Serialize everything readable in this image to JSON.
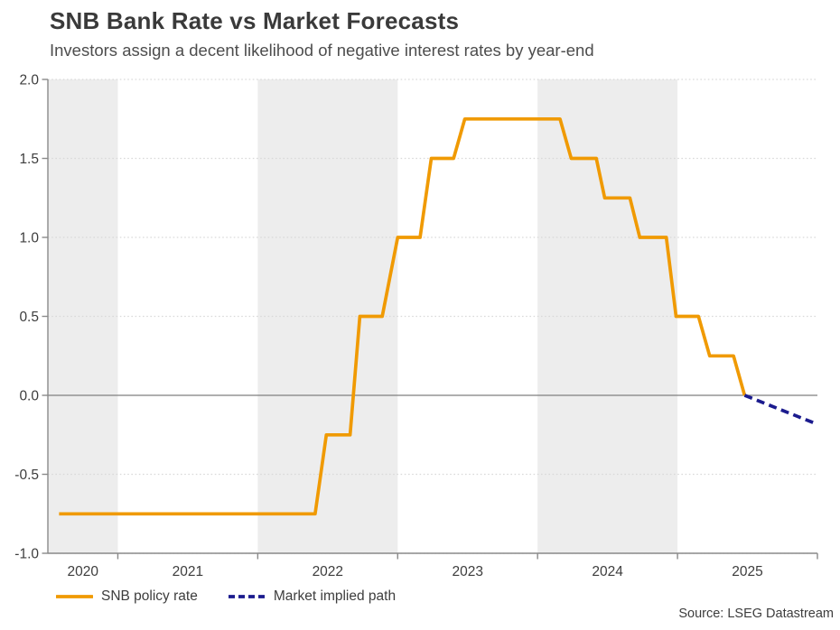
{
  "header": {
    "title": "SNB Bank Rate vs Market Forecasts",
    "subtitle": "Investors assign a decent likelihood of negative interest rates by year-end"
  },
  "source": "Source: LSEG Datastream",
  "legend": {
    "items": [
      {
        "label": "SNB policy rate",
        "style": "solid",
        "color": "#F09A03"
      },
      {
        "label": "Market implied path",
        "style": "dashed",
        "color": "#1B1B8E"
      }
    ]
  },
  "colors": {
    "policy_line": "#F09A03",
    "implied_line": "#1B1B8E",
    "band": "#EDEDED",
    "grid": "#D9D9D9",
    "axis": "#8A8A8A",
    "zero_line": "#7F7F7F",
    "title": "#3a3a3a",
    "subtitle": "#4d4d4d",
    "tick_label": "#3d3d3d"
  },
  "chart_data": {
    "type": "line",
    "title": "SNB Bank Rate vs Market Forecasts",
    "subtitle": "Investors assign a decent likelihood of negative interest rates by year-end",
    "xlabel": "",
    "ylabel": "",
    "xlim": [
      2020.5,
      2026.0
    ],
    "ylim": [
      -1.0,
      2.0
    ],
    "grid": "dotted horizontal lines at each y tick, solid line at zero",
    "legend_position": "bottom-left",
    "y_ticks": [
      2.0,
      1.5,
      1.0,
      0.5,
      0.0,
      -0.5,
      -1.0
    ],
    "y_tick_labels": [
      "2.0",
      "1.5",
      "1.0",
      "0.5",
      "0.0",
      "-0.5",
      "-1.0"
    ],
    "x_tick_boundaries": [
      2021,
      2022,
      2023,
      2024,
      2025,
      2026
    ],
    "x_labels": [
      {
        "text": "2020",
        "x": 2020.75
      },
      {
        "text": "2021",
        "x": 2021.5
      },
      {
        "text": "2022",
        "x": 2022.5
      },
      {
        "text": "2023",
        "x": 2023.5
      },
      {
        "text": "2024",
        "x": 2024.5
      },
      {
        "text": "2025",
        "x": 2025.5
      }
    ],
    "shaded_bands_x": [
      [
        2020.5,
        2021.0
      ],
      [
        2022.0,
        2023.0
      ],
      [
        2024.0,
        2025.0
      ]
    ],
    "series": [
      {
        "name": "SNB policy rate",
        "style": "solid",
        "color": "#F09A03",
        "points": [
          [
            2020.58,
            -0.75
          ],
          [
            2022.41,
            -0.75
          ],
          [
            2022.49,
            -0.25
          ],
          [
            2022.66,
            -0.25
          ],
          [
            2022.73,
            0.5
          ],
          [
            2022.89,
            0.5
          ],
          [
            2023.0,
            1.0
          ],
          [
            2023.16,
            1.0
          ],
          [
            2023.24,
            1.5
          ],
          [
            2023.4,
            1.5
          ],
          [
            2023.48,
            1.75
          ],
          [
            2024.16,
            1.75
          ],
          [
            2024.24,
            1.5
          ],
          [
            2024.42,
            1.5
          ],
          [
            2024.48,
            1.25
          ],
          [
            2024.66,
            1.25
          ],
          [
            2024.73,
            1.0
          ],
          [
            2024.92,
            1.0
          ],
          [
            2024.99,
            0.5
          ],
          [
            2025.15,
            0.5
          ],
          [
            2025.23,
            0.25
          ],
          [
            2025.4,
            0.25
          ],
          [
            2025.48,
            0.0
          ]
        ]
      },
      {
        "name": "Market implied path",
        "style": "dashed",
        "color": "#1B1B8E",
        "points": [
          [
            2025.48,
            0.0
          ],
          [
            2025.99,
            -0.18
          ]
        ]
      }
    ]
  }
}
